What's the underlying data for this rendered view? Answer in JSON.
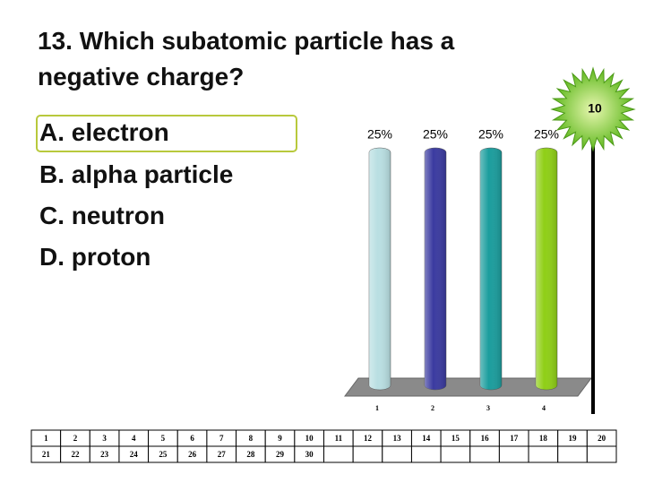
{
  "question": "13. Which subatomic particle has a negative charge?",
  "options": [
    "A. electron",
    "B. alpha particle",
    "C. neutron",
    "D. proton"
  ],
  "timer": 10,
  "chart_data": {
    "type": "bar",
    "categories": [
      "1",
      "2",
      "3",
      "4"
    ],
    "values": [
      25,
      25,
      25,
      25
    ],
    "value_labels": [
      "25%",
      "25%",
      "25%",
      "25%"
    ],
    "colors": [
      "#b9dfe2",
      "#3b3ba0",
      "#1b9d9d",
      "#8fcf16"
    ]
  },
  "participants": {
    "rows": [
      [
        1,
        2,
        3,
        4,
        5,
        6,
        7,
        8,
        9,
        10,
        11,
        12,
        13,
        14,
        15,
        16,
        17,
        18,
        19,
        20
      ],
      [
        21,
        22,
        23,
        24,
        25,
        26,
        27,
        28,
        29,
        30
      ]
    ]
  }
}
